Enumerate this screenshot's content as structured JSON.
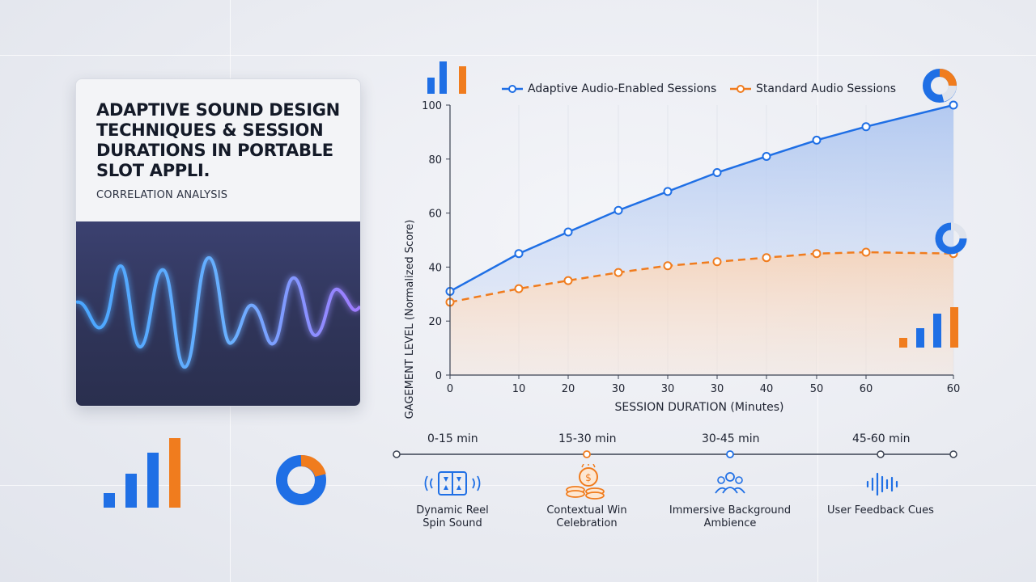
{
  "header": {
    "title": "ADAPTIVE SOUND DESIGN TECHNIQUES & SESSION DURATIONS IN PORTABLE SLOT APPLI.",
    "subtitle": "CORRELATION ANALYSIS"
  },
  "colors": {
    "accent_blue": "#1f6fe5",
    "accent_orange": "#f07c1e",
    "fill_blue": "#bcd0f2",
    "fill_orange": "#f6d7c0"
  },
  "chart_data": {
    "type": "line",
    "x_tick_labels": [
      "0",
      "10",
      "20",
      "30",
      "30",
      "30",
      "40",
      "50",
      "60",
      "60"
    ],
    "xlabel": "SESSION DURATION (Minutes)",
    "ylabel": "ENGAGEMENT LEVEL (Normalized Score)",
    "ylim": [
      0,
      100
    ],
    "y_ticks": [
      0,
      20,
      40,
      60,
      80,
      100
    ],
    "grid": true,
    "legend_placement": "top",
    "series": [
      {
        "name": "Adaptive Audio-Enabled Sessions",
        "color": "#1f6fe5",
        "style": "solid",
        "values": [
          31,
          45,
          53,
          61,
          68,
          75,
          81,
          87,
          92,
          100
        ]
      },
      {
        "name": "Standard Audio Sessions",
        "color": "#f07c1e",
        "style": "dashed",
        "values": [
          27,
          32,
          35,
          38,
          40.5,
          42,
          43.5,
          45,
          45.5,
          45
        ]
      }
    ]
  },
  "timeline": {
    "stages": [
      {
        "range": "0-15 min",
        "feature": "Dynamic Reel Spin Sound",
        "icon": "slot-reel-sound-icon",
        "accent": "#1f6fe5"
      },
      {
        "range": "15-30 min",
        "feature": "Contextual Win Celebration",
        "icon": "coin-stack-icon",
        "accent": "#f07c1e"
      },
      {
        "range": "30-45 min",
        "feature": "Immersive Background Ambience",
        "icon": "audience-icon",
        "accent": "#1f6fe5"
      },
      {
        "range": "45-60 min",
        "feature": "User Feedback Cues",
        "icon": "sound-wave-icon",
        "accent": "#1f6fe5"
      }
    ]
  }
}
